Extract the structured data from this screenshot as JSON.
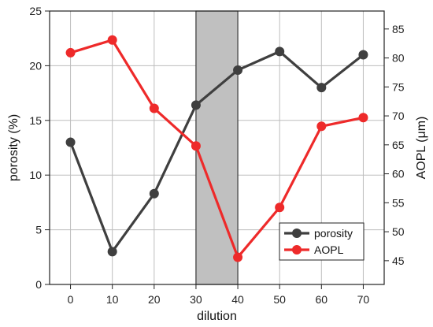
{
  "chart_data": {
    "type": "line",
    "title": "",
    "xlabel": "dilution",
    "ylabel_left": "porosity (%)",
    "ylabel_right": "AOPL (μm)",
    "x": [
      0,
      10,
      20,
      30,
      40,
      50,
      60,
      70
    ],
    "xlim": [
      -5,
      75
    ],
    "xticks": [
      0,
      10,
      20,
      30,
      40,
      50,
      60,
      70
    ],
    "ylim_left": [
      0,
      25
    ],
    "yticks_left": [
      0,
      5,
      10,
      15,
      20,
      25
    ],
    "ylim_right": [
      40.9,
      88.1
    ],
    "yticks_right": [
      45,
      50,
      55,
      60,
      65,
      70,
      75,
      80,
      85
    ],
    "grid": true,
    "legend_position": "bottom-right",
    "shaded_region": {
      "x_from": 30,
      "x_to": 40,
      "color": "#c0c0c0"
    },
    "series": [
      {
        "name": "porosity",
        "axis": "left",
        "color": "#3f3f3f",
        "values": [
          13.0,
          3.0,
          8.3,
          16.4,
          19.6,
          21.3,
          18.0,
          21.0
        ]
      },
      {
        "name": "AOPL",
        "axis": "right",
        "color": "#ee2a2a",
        "values": [
          80.9,
          83.1,
          71.3,
          64.8,
          45.6,
          54.2,
          68.2,
          69.7
        ]
      }
    ]
  }
}
